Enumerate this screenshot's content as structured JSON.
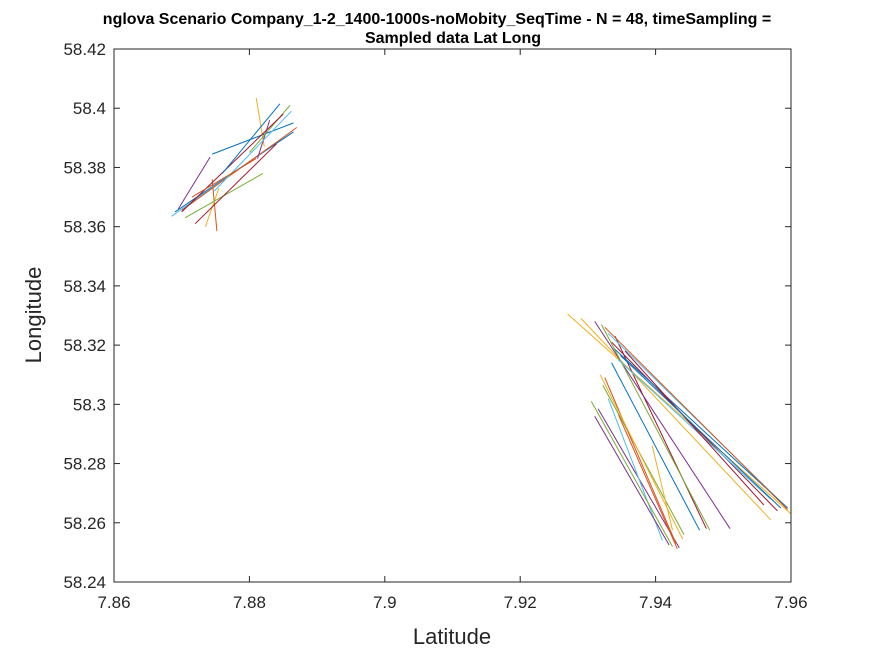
{
  "chart_data": {
    "type": "line",
    "title": "nglova Scenario Company_1-2_1400-1000s-noMobity_SeqTime - N = 48, timeSampling =",
    "subtitle": "Sampled data Lat Long",
    "xlabel": "Latitude",
    "ylabel": "Longitude",
    "xlim": [
      7.86,
      7.96
    ],
    "ylim": [
      58.24,
      58.42
    ],
    "xticks": [
      "7.86",
      "7.88",
      "7.9",
      "7.92",
      "7.94",
      "7.96"
    ],
    "yticks": [
      "58.24",
      "58.26",
      "58.28",
      "58.3",
      "58.32",
      "58.34",
      "58.36",
      "58.38",
      "58.4",
      "58.42"
    ],
    "grid": false,
    "legend": "none",
    "color_order": [
      "#0072BD",
      "#D95319",
      "#EDB120",
      "#7E2F8E",
      "#77AC30",
      "#4DBEEE",
      "#A2142F"
    ],
    "series": [
      {
        "x": [
          7.869,
          7.8865
        ],
        "y": [
          58.365,
          58.392
        ]
      },
      {
        "x": [
          7.8752,
          7.8745
        ],
        "y": [
          58.3585,
          58.376
        ]
      },
      {
        "x": [
          7.8735,
          7.8755
        ],
        "y": [
          58.36,
          58.373
        ]
      },
      {
        "x": [
          7.8695,
          7.8742
        ],
        "y": [
          58.366,
          58.3835
        ]
      },
      {
        "x": [
          7.8705,
          7.882
        ],
        "y": [
          58.363,
          58.378
        ]
      },
      {
        "x": [
          7.8685,
          7.8825
        ],
        "y": [
          58.3635,
          58.386
        ]
      },
      {
        "x": [
          7.872,
          7.884
        ],
        "y": [
          58.361,
          58.388
        ]
      },
      {
        "x": [
          7.8745,
          7.8865
        ],
        "y": [
          58.3845,
          58.395
        ]
      },
      {
        "x": [
          7.87,
          7.887
        ],
        "y": [
          58.3655,
          58.3935
        ]
      },
      {
        "x": [
          7.881,
          7.8822
        ],
        "y": [
          58.4035,
          58.387
        ]
      },
      {
        "x": [
          7.8812,
          7.883
        ],
        "y": [
          58.383,
          58.396
        ]
      },
      {
        "x": [
          7.88,
          7.886
        ],
        "y": [
          58.385,
          58.401
        ]
      },
      {
        "x": [
          7.8748,
          7.8862
        ],
        "y": [
          58.372,
          58.399
        ]
      },
      {
        "x": [
          7.87,
          7.885
        ],
        "y": [
          58.365,
          58.398
        ]
      },
      {
        "x": [
          7.876,
          7.8845
        ],
        "y": [
          58.378,
          58.4015
        ]
      },
      {
        "x": [
          7.8715,
          7.881
        ],
        "y": [
          58.37,
          58.383
        ]
      },
      {
        "x": [
          7.927,
          7.96
        ],
        "y": [
          58.3305,
          58.263
        ]
      },
      {
        "x": [
          7.9315,
          7.9435
        ],
        "y": [
          58.2985,
          58.2515
        ]
      },
      {
        "x": [
          7.9322,
          7.9442
        ],
        "y": [
          58.3065,
          58.256
        ]
      },
      {
        "x": [
          7.933,
          7.941
        ],
        "y": [
          58.302,
          58.254
        ]
      },
      {
        "x": [
          7.934,
          7.9475
        ],
        "y": [
          58.323,
          58.258
        ]
      },
      {
        "x": [
          7.9335,
          7.9465
        ],
        "y": [
          58.314,
          58.2575
        ]
      },
      {
        "x": [
          7.9325,
          7.943
        ],
        "y": [
          58.309,
          58.253
        ]
      },
      {
        "x": [
          7.9318,
          7.944
        ],
        "y": [
          58.31,
          58.2545
        ]
      },
      {
        "x": [
          7.931,
          7.942
        ],
        "y": [
          58.296,
          58.2525
        ]
      },
      {
        "x": [
          7.9305,
          7.9425
        ],
        "y": [
          58.301,
          58.252
        ]
      },
      {
        "x": [
          7.933,
          7.959
        ],
        "y": [
          58.324,
          58.266
        ]
      },
      {
        "x": [
          7.9335,
          7.958
        ],
        "y": [
          58.321,
          58.264
        ]
      },
      {
        "x": [
          7.9338,
          7.9595
        ],
        "y": [
          58.319,
          58.265
        ]
      },
      {
        "x": [
          7.9325,
          7.9595
        ],
        "y": [
          58.326,
          58.2645
        ]
      },
      {
        "x": [
          7.929,
          7.957
        ],
        "y": [
          58.329,
          58.261
        ]
      },
      {
        "x": [
          7.931,
          7.951
        ],
        "y": [
          58.328,
          58.258
        ]
      },
      {
        "x": [
          7.932,
          7.948
        ],
        "y": [
          58.327,
          58.2575
        ]
      },
      {
        "x": [
          7.9345,
          7.957
        ],
        "y": [
          58.315,
          58.268
        ]
      },
      {
        "x": [
          7.9355,
          7.956
        ],
        "y": [
          58.318,
          58.266
        ]
      },
      {
        "x": [
          7.9348,
          7.9585
        ],
        "y": [
          58.3165,
          58.265
        ]
      },
      {
        "x": [
          7.9345,
          7.9432
        ],
        "y": [
          58.2965,
          58.2512
        ]
      },
      {
        "x": [
          7.9395,
          7.9425
        ],
        "y": [
          58.286,
          58.2575
        ]
      }
    ]
  }
}
